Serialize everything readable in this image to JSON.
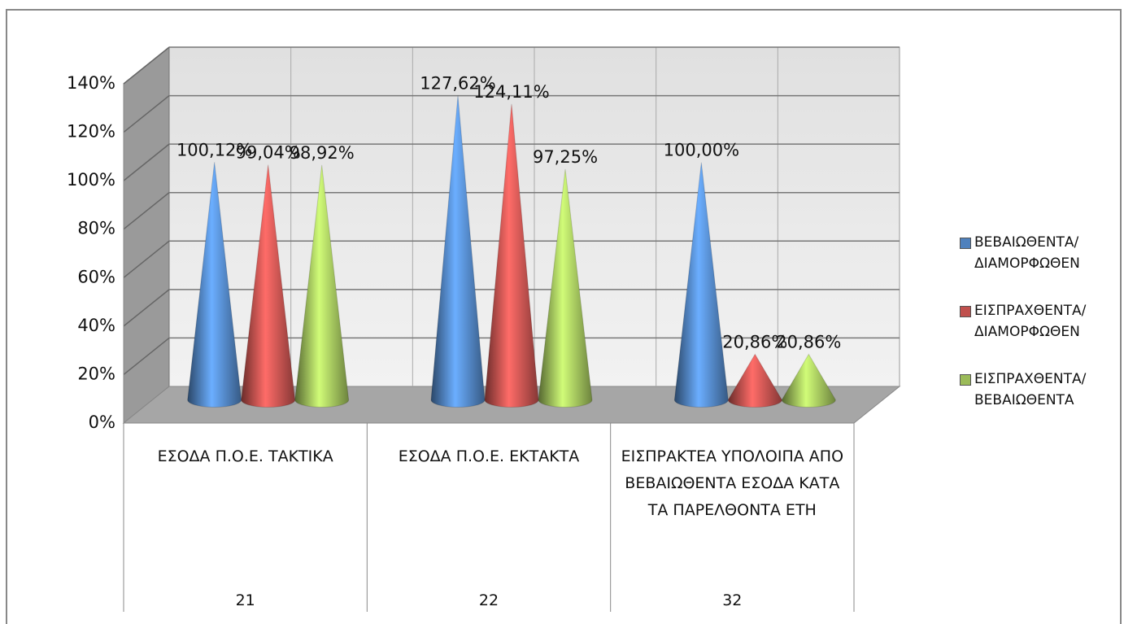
{
  "chart_data": {
    "type": "cone",
    "categories": [
      "ΕΣΟΔΑ Π.Ο.Ε. ΤΑΚΤΙΚΑ",
      "ΕΣΟΔΑ Π.Ο.Ε. ΕΚΤΑΚΤΑ",
      "ΕΙΣΠΡΑΚΤΕΑ ΥΠΟΛΟΙΠΑ ΑΠΟ ΒΕΒΑΙΩΘΕΝΤΑ ΕΣΟΔΑ ΚΑΤΑ ΤΑ ΠΑΡΕΛΘΟΝΤΑ ΕΤΗ"
    ],
    "category_codes": [
      "21",
      "22",
      "32"
    ],
    "series": [
      {
        "name": "ΒΕΒΑΙΩΘΕΝΤΑ/ ΔΙΑΜΟΡΦΩΘΕΝ",
        "color": "#4f81bd",
        "values": [
          100.12,
          127.62,
          100.0
        ],
        "value_labels": [
          "100,12%",
          "127,62%",
          "100,00%"
        ]
      },
      {
        "name": "ΕΙΣΠΡΑΧΘΕΝΤΑ/ ΔΙΑΜΟΡΦΩΘΕΝ",
        "color": "#c0504d",
        "values": [
          99.04,
          124.11,
          20.86
        ],
        "value_labels": [
          "99,04%",
          "124,11%",
          "20,86%"
        ]
      },
      {
        "name": "ΕΙΣΠΡΑΧΘΕΝΤΑ/ ΒΕΒΑΙΩΘΕΝΤΑ",
        "color": "#9bbb59",
        "values": [
          98.92,
          97.25,
          20.86
        ],
        "value_labels": [
          "98,92%",
          "97,25%",
          "20,86%"
        ]
      }
    ],
    "ylim": [
      0,
      140
    ],
    "yticks": [
      {
        "value": 0,
        "label": "0%"
      },
      {
        "value": 20,
        "label": "20%"
      },
      {
        "value": 40,
        "label": "40%"
      },
      {
        "value": 60,
        "label": "60%"
      },
      {
        "value": 80,
        "label": "80%"
      },
      {
        "value": 100,
        "label": "100%"
      },
      {
        "value": 120,
        "label": "120%"
      },
      {
        "value": 140,
        "label": "140%"
      }
    ],
    "grid": true,
    "legend": "right"
  }
}
